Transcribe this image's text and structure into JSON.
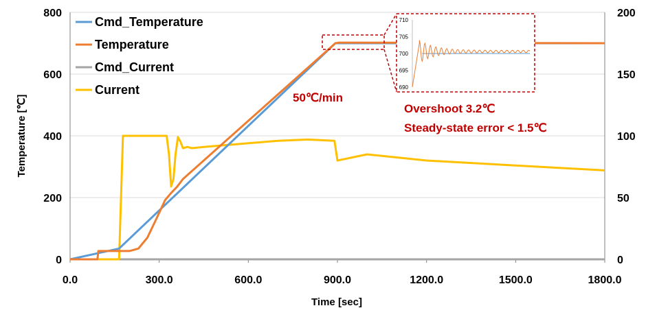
{
  "chart_data": {
    "type": "line",
    "xlabel": "Time [sec]",
    "ylabel": "Temperature [℃]",
    "y2label": "",
    "xlim": [
      0,
      1800
    ],
    "ylim": [
      0,
      800
    ],
    "y2lim": [
      0,
      200
    ],
    "x_ticks": [
      "0.0",
      "300.0",
      "600.0",
      "900.0",
      "1200.0",
      "1500.0",
      "1800.0"
    ],
    "y_ticks": [
      "0",
      "200",
      "400",
      "600",
      "800"
    ],
    "y2_ticks": [
      "0",
      "50",
      "100",
      "150",
      "200"
    ],
    "grid": true,
    "legend_position": "top-left",
    "series": [
      {
        "name": "Cmd_Temperature",
        "color": "#5b9bd5",
        "axis": "left",
        "x": [
          0,
          165,
          893,
          1800
        ],
        "y": [
          0,
          35,
          700,
          700
        ]
      },
      {
        "name": "Temperature",
        "color": "#ed7d31",
        "axis": "left",
        "x": [
          0,
          92,
          95,
          200,
          230,
          260,
          290,
          320,
          340,
          360,
          380,
          893,
          905,
          1800
        ],
        "y": [
          0,
          0,
          27,
          27,
          35,
          70,
          130,
          192,
          215,
          235,
          260,
          700,
          702,
          700
        ]
      },
      {
        "name": "Cmd_Current",
        "color": "#a5a5a5",
        "axis": "right",
        "x": [
          0,
          1800
        ],
        "y": [
          0,
          0
        ]
      },
      {
        "name": "Current",
        "color": "#ffc000",
        "axis": "right",
        "x": [
          0,
          165,
          178,
          182,
          325,
          333,
          340,
          348,
          355,
          363,
          372,
          380,
          395,
          410,
          450,
          500,
          550,
          600,
          700,
          800,
          890,
          900,
          1000,
          1200,
          1500,
          1800
        ],
        "y": [
          0,
          0,
          100,
          100,
          100,
          85,
          59,
          65,
          85,
          99,
          95,
          90,
          91,
          90,
          91,
          92,
          93,
          94,
          96,
          97,
          96,
          80,
          85,
          80,
          76,
          72
        ]
      }
    ],
    "annotations": [
      "50℃/min",
      "Overshoot 3.2℃",
      "Steady-state error < 1.5℃"
    ],
    "inset": {
      "xlim": [
        880,
        1100
      ],
      "ylim": [
        690,
        710
      ],
      "y_ticks": [
        "710",
        "705",
        "700",
        "695",
        "690"
      ]
    }
  }
}
